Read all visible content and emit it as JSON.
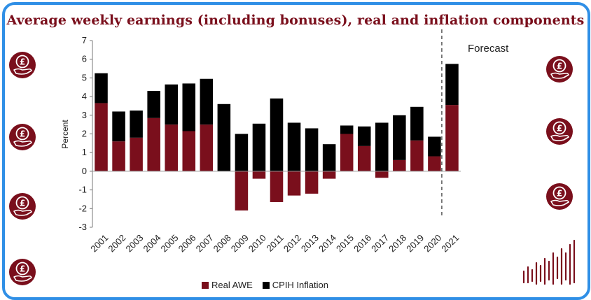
{
  "title": "Average weekly earnings (including bonuses), real and inflation components",
  "forecast_label": "Forecast",
  "icons": [
    "pound-coin-hand-icon"
  ],
  "colors": {
    "real": "#7a0f1c",
    "inflation": "#000000",
    "frame": "#2f8fe6",
    "title": "#7a0f1c"
  },
  "chart_data": {
    "type": "bar",
    "stacked": true,
    "categories": [
      "2001",
      "2002",
      "2003",
      "2004",
      "2005",
      "2006",
      "2007",
      "2008",
      "2009",
      "2010",
      "2011",
      "2012",
      "2013",
      "2014",
      "2015",
      "2016",
      "2017",
      "2018",
      "2019",
      "2020",
      "2021"
    ],
    "series": [
      {
        "name": "Real AWE",
        "values": [
          3.65,
          1.6,
          1.8,
          2.85,
          2.5,
          2.15,
          2.5,
          0.0,
          -2.1,
          -0.4,
          -1.65,
          -1.3,
          -1.2,
          -0.4,
          2.0,
          1.35,
          -0.35,
          0.6,
          1.65,
          0.8,
          3.55
        ]
      },
      {
        "name": "CPIH Inflation",
        "values": [
          1.6,
          1.6,
          1.45,
          1.45,
          2.15,
          2.55,
          2.45,
          3.6,
          2.0,
          2.55,
          3.9,
          2.6,
          2.3,
          1.45,
          0.45,
          1.05,
          2.6,
          2.4,
          1.8,
          1.05,
          2.2
        ]
      }
    ],
    "ylabel": "Percent",
    "xlabel": "",
    "ylim": [
      -3,
      7
    ],
    "yticks": [
      "7",
      "6",
      "5",
      "4",
      "3",
      "2",
      "1",
      "0",
      "-1",
      "-2",
      "-3"
    ],
    "grid": false,
    "legend": "bottom",
    "forecast_from": "2021"
  }
}
